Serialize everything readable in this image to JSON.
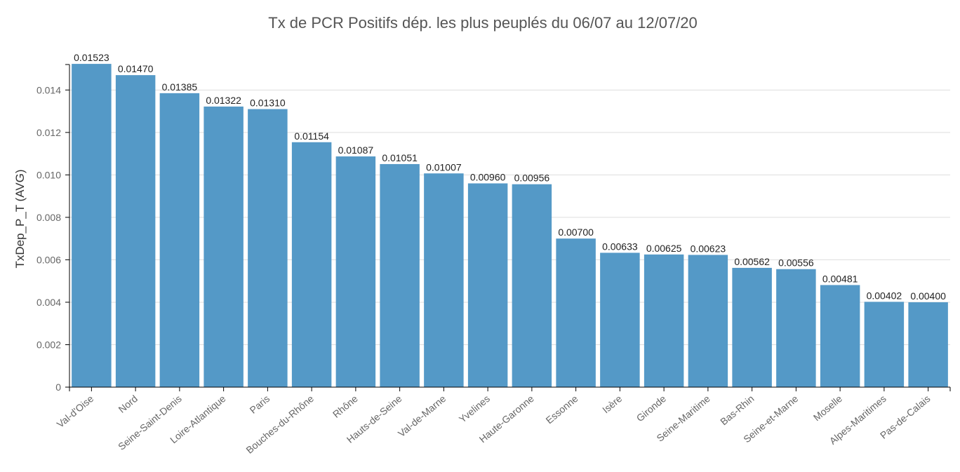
{
  "chart_data": {
    "type": "bar",
    "title": "Tx de PCR Positifs dép. les plus peuplés du 06/07  au 12/07/20",
    "xlabel": "",
    "ylabel": "TxDep_P_T (AVG)",
    "ylim": [
      0,
      0.0152
    ],
    "yticks": [
      "0",
      "0.002",
      "0.004",
      "0.006",
      "0.008",
      "0.010",
      "0.012",
      "0.014"
    ],
    "grid": true,
    "bar_color": "#5499c7",
    "categories": [
      "Val-d'Oise",
      "Nord",
      "Seine-Saint-Denis",
      "Loire-Atlantique",
      "Paris",
      "Bouches-du-Rhône",
      "Rhône",
      "Hauts-de-Seine",
      "Val-de-Marne",
      "Yvelines",
      "Haute-Garonne",
      "Essonne",
      "Isère",
      "Gironde",
      "Seine-Maritime",
      "Bas-Rhin",
      "Seine-et-Marne",
      "Moselle",
      "Alpes-Maritimes",
      "Pas-de-Calais"
    ],
    "values": [
      0.01523,
      0.0147,
      0.01385,
      0.01322,
      0.0131,
      0.01154,
      0.01087,
      0.01051,
      0.01007,
      0.0096,
      0.00956,
      0.007,
      0.00633,
      0.00625,
      0.00623,
      0.00562,
      0.00556,
      0.00481,
      0.00402,
      0.004
    ],
    "value_labels": [
      "0.01523",
      "0.01470",
      "0.01385",
      "0.01322",
      "0.01310",
      "0.01154",
      "0.01087",
      "0.01051",
      "0.01007",
      "0.00960",
      "0.00956",
      "0.00700",
      "0.00633",
      "0.00625",
      "0.00623",
      "0.00562",
      "0.00556",
      "0.00481",
      "0.00402",
      "0.00400"
    ]
  }
}
